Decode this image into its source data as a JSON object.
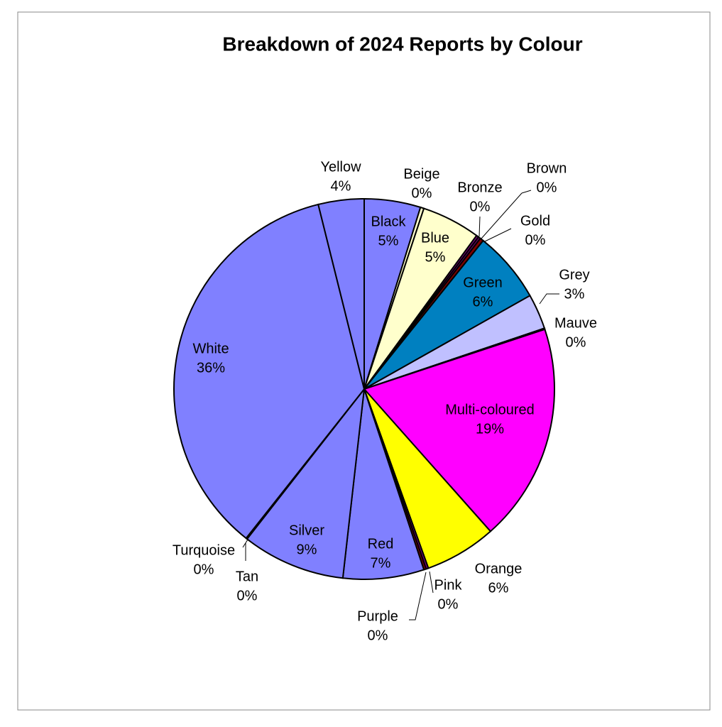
{
  "chart_data": {
    "type": "pie",
    "title": "Breakdown of 2024 Reports by Colour",
    "categories": [
      "Black",
      "Beige",
      "Blue",
      "Bronze",
      "Brown",
      "Gold",
      "Green",
      "Grey",
      "Mauve",
      "Multi-coloured",
      "Orange",
      "Pink",
      "Purple",
      "Red",
      "Silver",
      "Tan",
      "Turquoise",
      "White",
      "Yellow"
    ],
    "values": [
      4.8,
      0.3,
      5.0,
      0.2,
      0.2,
      0.3,
      6.1,
      3.0,
      0.1,
      18.6,
      6.1,
      0.2,
      0.2,
      6.9,
      8.8,
      0.05,
      0.05,
      35.6,
      3.9
    ],
    "value_labels": [
      "5%",
      "0%",
      "5%",
      "0%",
      "0%",
      "0%",
      "6%",
      "3%",
      "0%",
      "19%",
      "6%",
      "0%",
      "0%",
      "7%",
      "9%",
      "0%",
      "0%",
      "36%",
      "4%"
    ],
    "colors": [
      "#8080ff",
      "#ffffcc",
      "#ffffcc",
      "#800080",
      "#660066",
      "#800000",
      "#0080c0",
      "#c0c0ff",
      "#c0c0ff",
      "#ff00ff",
      "#ffff00",
      "#800080",
      "#800000",
      "#8080ff",
      "#8080ff",
      "#8080ff",
      "#8080ff",
      "#8080ff",
      "#8080ff"
    ]
  }
}
